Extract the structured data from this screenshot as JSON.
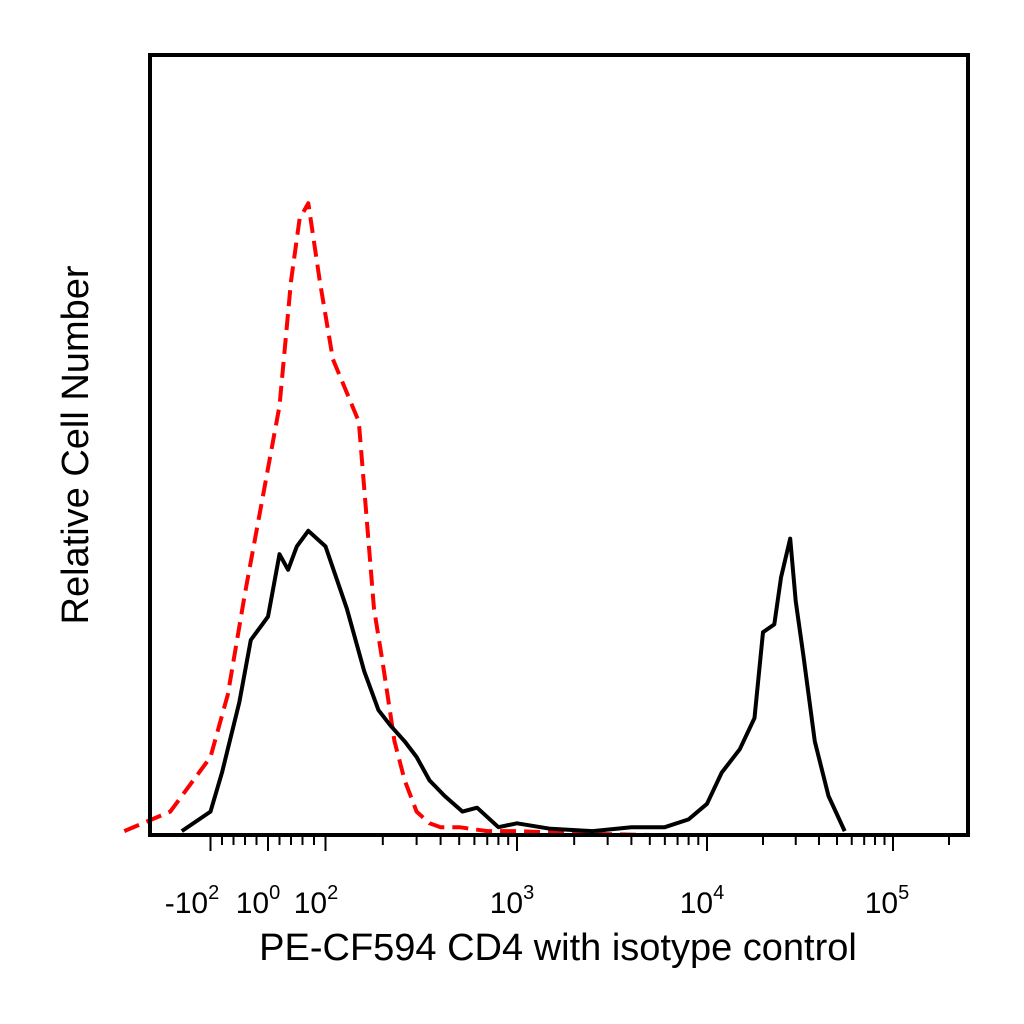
{
  "chart_data": {
    "type": "line",
    "title": "",
    "xlabel": "PE-CF594 CD4 with isotype control",
    "ylabel": "Relative Cell Number",
    "x_scale": "biexponential",
    "xlim": [
      -400,
      250000
    ],
    "ylim": [
      0,
      1.0
    ],
    "grid": false,
    "legend": "none",
    "x_major_ticks": [
      {
        "value": -100,
        "base": "-10",
        "exp": "2"
      },
      {
        "value": 0,
        "base": "10",
        "exp": "0"
      },
      {
        "value": 100,
        "base": "10",
        "exp": "2"
      },
      {
        "value": 1000,
        "base": "10",
        "exp": "3"
      },
      {
        "value": 10000,
        "base": "10",
        "exp": "4"
      },
      {
        "value": 100000,
        "base": "10",
        "exp": "5"
      }
    ],
    "series": [
      {
        "color": "#ff0000",
        "dash": "dashed",
        "x": [
          -250,
          -170,
          -100,
          -70,
          -40,
          -15,
          0,
          20,
          40,
          55,
          70,
          90,
          110,
          150,
          180,
          200,
          230,
          260,
          300,
          350,
          400,
          500,
          700,
          1000,
          2000,
          5000
        ],
        "y": [
          0.005,
          0.03,
          0.1,
          0.18,
          0.31,
          0.41,
          0.47,
          0.55,
          0.71,
          0.79,
          0.81,
          0.71,
          0.61,
          0.53,
          0.29,
          0.22,
          0.12,
          0.07,
          0.03,
          0.015,
          0.01,
          0.01,
          0.005,
          0.005,
          0.002,
          0
        ]
      },
      {
        "color": "#000000",
        "dash": "solid",
        "x": [
          -150,
          -100,
          -80,
          -50,
          -30,
          -10,
          0,
          20,
          35,
          50,
          70,
          100,
          130,
          160,
          190,
          220,
          260,
          300,
          350,
          420,
          520,
          620,
          800,
          1000,
          1500,
          2500,
          4000,
          6000,
          8000,
          10000,
          12000,
          15000,
          18000,
          20000,
          23000,
          25000,
          28000,
          30000,
          33000,
          38000,
          45000,
          55000
        ],
        "y": [
          0.005,
          0.03,
          0.08,
          0.17,
          0.25,
          0.27,
          0.28,
          0.36,
          0.34,
          0.37,
          0.39,
          0.37,
          0.29,
          0.21,
          0.16,
          0.14,
          0.12,
          0.1,
          0.07,
          0.05,
          0.03,
          0.035,
          0.01,
          0.015,
          0.008,
          0.005,
          0.01,
          0.01,
          0.02,
          0.04,
          0.08,
          0.11,
          0.15,
          0.26,
          0.27,
          0.33,
          0.38,
          0.3,
          0.23,
          0.12,
          0.05,
          0.005
        ]
      }
    ]
  }
}
